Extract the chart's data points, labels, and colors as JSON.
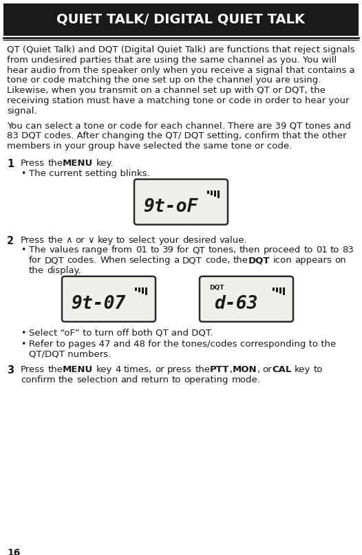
{
  "title": "QUIET TALK/ DIGITAL QUIET TALK",
  "bg_color": "#ffffff",
  "title_bg": "#1a1a1a",
  "title_fg": "#ffffff",
  "body_color": "#1a1a1a",
  "paragraph1": "QT (Quiet Talk) and DQT (Digital Quiet Talk) are functions that reject signals from undesired parties that are using the same channel as you.  You will hear audio from the speaker only when you receive a signal that contains a tone or code matching the one set up on the channel you are using.  Likewise, when you transmit on a channel set up with QT or DQT, the receiving station must have a matching tone or code in order to hear your signal.",
  "paragraph2": "You can select a tone or code for each channel.  There are 39 QT tones and 83 DQT codes.  After changing the QT/ DQT setting, confirm that the other members in your group have selected the same tone or code.",
  "step2_sub2": "Select “oF” to turn off both QT and DQT.",
  "step2_sub3": "Refer to pages 47 and 48 for the tones/codes corresponding to the QT/DQT numbers.",
  "page_number": "16"
}
